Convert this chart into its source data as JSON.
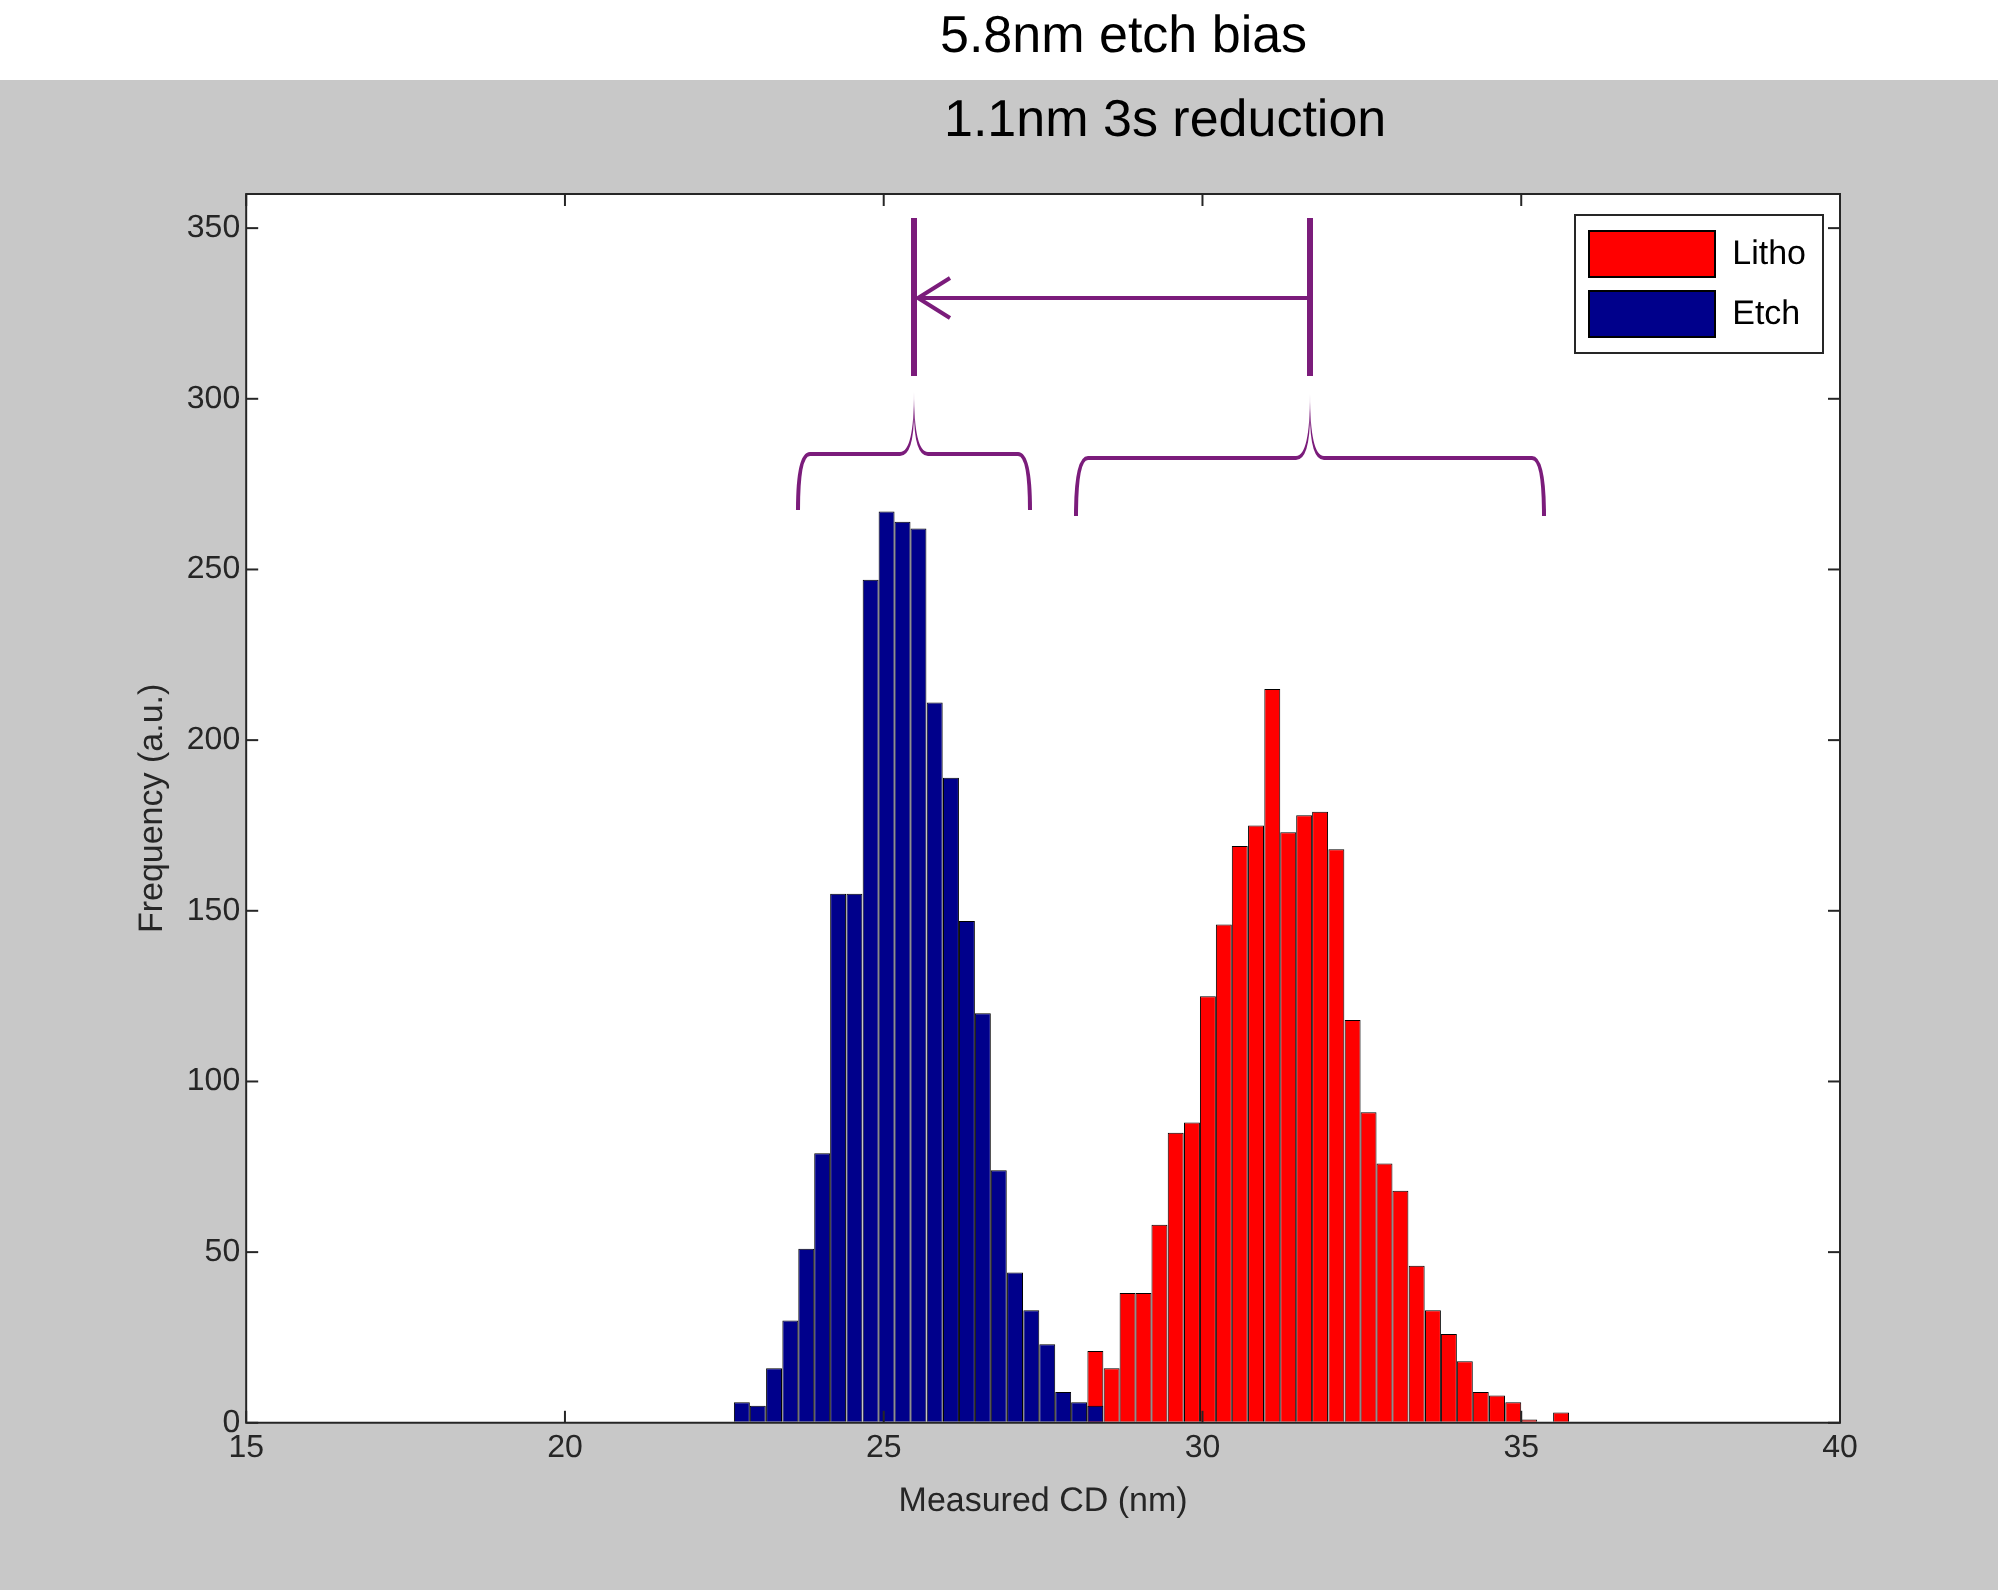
{
  "chart_data": {
    "type": "histogram",
    "xlabel": "Measured CD (nm)",
    "ylabel": "Frequency (a.u.)",
    "annotations": [
      "5.8nm etch bias",
      "1.1nm 3s reduction"
    ],
    "xlim": [
      15,
      40
    ],
    "xticks": [
      15,
      20,
      25,
      30,
      35,
      40
    ],
    "ylim": [
      0,
      360
    ],
    "yticks": [
      0,
      50,
      100,
      150,
      200,
      250,
      300,
      350
    ],
    "grid": false,
    "legend": "top right",
    "bins": [
      22.65,
      22.9,
      23.15,
      23.41,
      23.66,
      23.91,
      24.16,
      24.41,
      24.67,
      24.92,
      25.17,
      25.42,
      25.67,
      25.93,
      26.18,
      26.43,
      26.68,
      26.93,
      27.19,
      27.44,
      27.69,
      27.94,
      28.19,
      28.45,
      28.7,
      28.95,
      29.2,
      29.45,
      29.71,
      29.96,
      30.21,
      30.46,
      30.71,
      30.97,
      31.22,
      31.47,
      31.72,
      31.97,
      32.23,
      32.48,
      32.73,
      32.98,
      33.23,
      33.49,
      33.74,
      33.99,
      34.24,
      34.49,
      34.75,
      35.0,
      35.25,
      35.5,
      35.75
    ],
    "series": [
      {
        "name": "Litho",
        "color": "#ff0000",
        "values": [
          null,
          null,
          null,
          null,
          null,
          null,
          null,
          null,
          null,
          null,
          null,
          null,
          null,
          null,
          null,
          null,
          null,
          null,
          null,
          null,
          null,
          null,
          21,
          16,
          38,
          38,
          58,
          85,
          88,
          125,
          146,
          169,
          175,
          215,
          173,
          178,
          179,
          168,
          118,
          91,
          76,
          68,
          46,
          33,
          26,
          18,
          9,
          8,
          6,
          1,
          0,
          3
        ]
      },
      {
        "name": "Etch",
        "color": "#00008b",
        "values": [
          6,
          5,
          16,
          30,
          51,
          79,
          155,
          155,
          247,
          267,
          264,
          262,
          211,
          189,
          147,
          120,
          74,
          44,
          33,
          23,
          9,
          6,
          5,
          null,
          null,
          null,
          null,
          null,
          null,
          null,
          null,
          null,
          null,
          null,
          null,
          null,
          null,
          null,
          null,
          null,
          null,
          null,
          null,
          null,
          null,
          null,
          null,
          null,
          null,
          null,
          null,
          null
        ]
      }
    ]
  }
}
